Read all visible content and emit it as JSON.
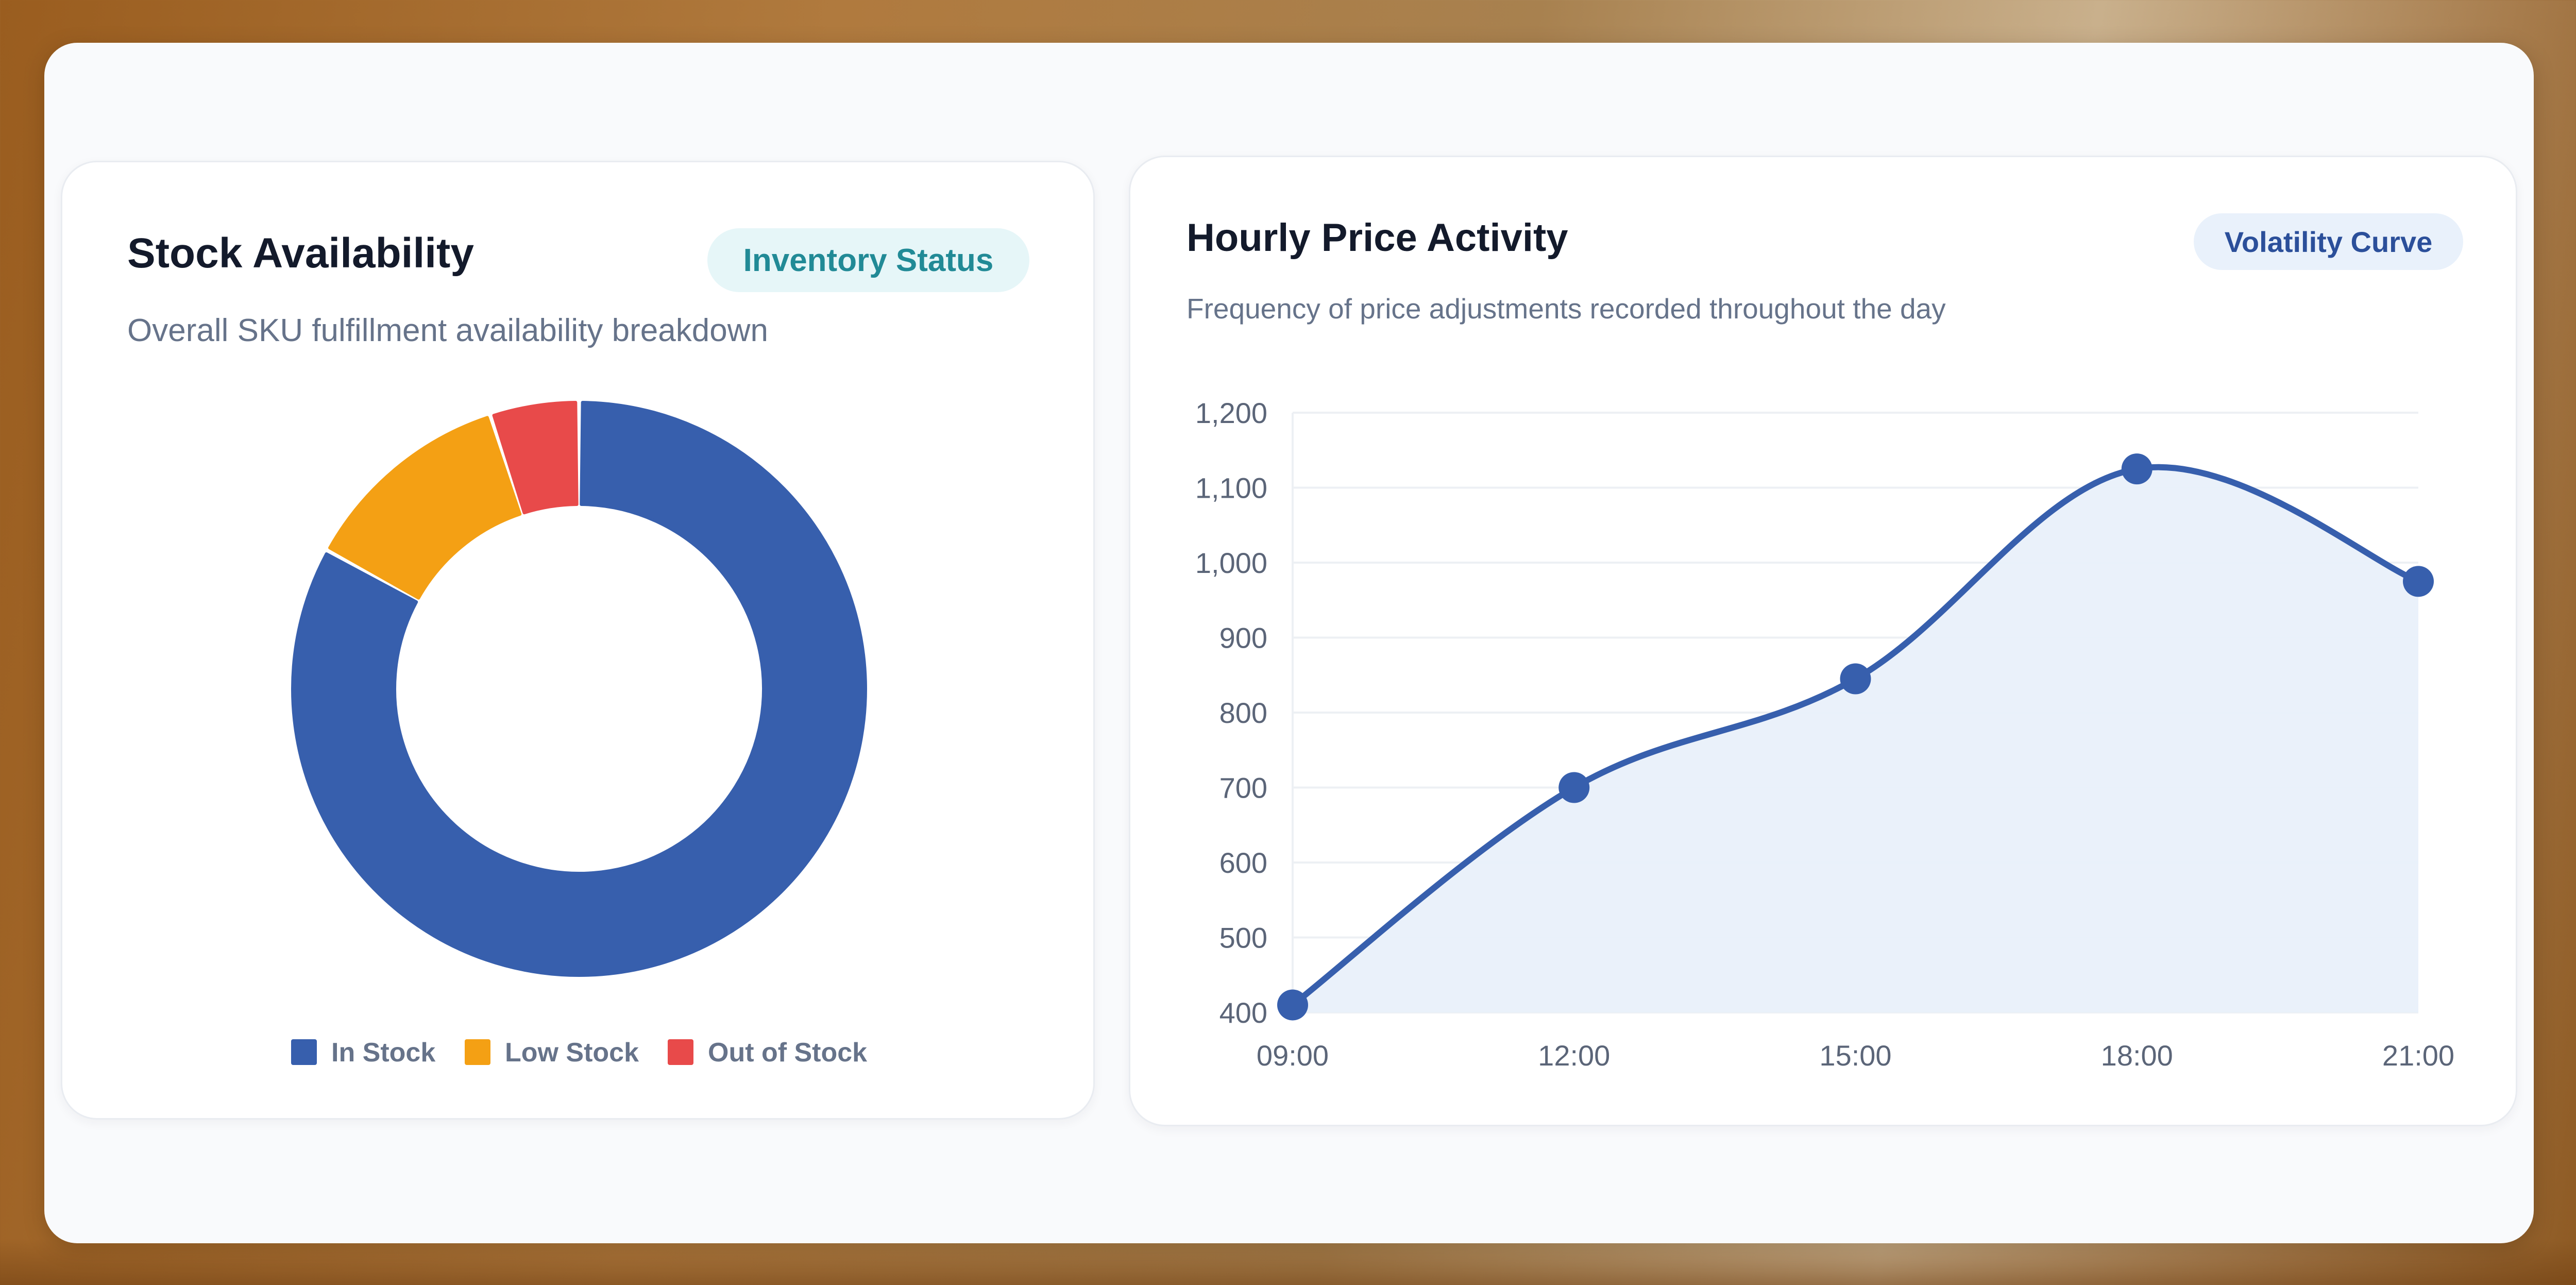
{
  "left_panel": {
    "title": "Stock Availability",
    "subtitle": "Overall SKU fulfillment availability breakdown",
    "badge": "Inventory Status"
  },
  "right_panel": {
    "title": "Hourly Price Activity",
    "subtitle": "Frequency of price adjustments recorded throughout the day",
    "badge": "Volatility Curve"
  },
  "colors": {
    "in_stock": "#375fad",
    "low_stock": "#f4a014",
    "out_of_stock": "#e84a4a",
    "line": "#375fad",
    "area_fill": "#e9f0fa"
  },
  "chart_data": [
    {
      "type": "pie",
      "categories": [
        "In Stock",
        "Low Stock",
        "Out of Stock"
      ],
      "values": [
        83,
        12,
        5
      ],
      "legend": "bottom",
      "colors": [
        "#375fad",
        "#f4a014",
        "#e84a4a"
      ]
    },
    {
      "type": "area",
      "x": [
        "09:00",
        "12:00",
        "15:00",
        "18:00",
        "21:00"
      ],
      "values": [
        410,
        700,
        845,
        1125,
        975
      ],
      "ylim": [
        400,
        1200
      ],
      "yticks": [
        "400",
        "500",
        "600",
        "700",
        "800",
        "900",
        "1,000",
        "1,100",
        "1,200"
      ],
      "grid": true,
      "smooth": true
    }
  ]
}
